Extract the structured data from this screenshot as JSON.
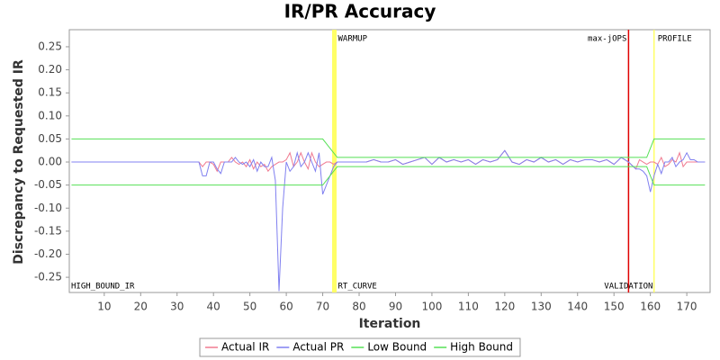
{
  "chart_data": {
    "type": "line",
    "title": "IR/PR Accuracy",
    "xlabel": "Iteration",
    "ylabel": "Discrepancy to Requested IR",
    "xlim": [
      0.4,
      176.4
    ],
    "ylim": [
      -0.283,
      0.287
    ],
    "xticks": [
      10,
      20,
      30,
      40,
      50,
      60,
      70,
      80,
      90,
      100,
      110,
      120,
      130,
      140,
      150,
      160,
      170
    ],
    "yticks": [
      -0.25,
      {
        "value": -0.2,
        "label": "-0.20"
      },
      -0.15,
      {
        "value": -0.1,
        "label": "-0.10"
      },
      -0.05,
      {
        "value": 0,
        "label": "0.00"
      },
      0.05,
      {
        "value": 0.1,
        "label": "0.10"
      },
      0.15,
      {
        "value": 0.2,
        "label": "0.20"
      },
      0.25
    ],
    "x": [
      1,
      35,
      36,
      37,
      38,
      39,
      40,
      41,
      42,
      43,
      44,
      45,
      46,
      47,
      48,
      49,
      50,
      51,
      52,
      53,
      54,
      55,
      56,
      57,
      58,
      59,
      60,
      61,
      62,
      63,
      64,
      65,
      66,
      67,
      68,
      69,
      70,
      71,
      72,
      73,
      74,
      75,
      76,
      78,
      80,
      82,
      84,
      86,
      88,
      90,
      92,
      94,
      96,
      98,
      100,
      102,
      104,
      106,
      108,
      110,
      112,
      114,
      116,
      118,
      120,
      122,
      124,
      126,
      128,
      130,
      132,
      134,
      136,
      138,
      140,
      142,
      144,
      146,
      148,
      150,
      152,
      154,
      156,
      157,
      158,
      159,
      160,
      161,
      162,
      163,
      164,
      165,
      166,
      167,
      168,
      169,
      170,
      171,
      172,
      173,
      174,
      175
    ],
    "series": [
      {
        "name": "Actual IR",
        "color": "#f07a90",
        "values": [
          0,
          0,
          0,
          -0.01,
          0,
          0,
          -0.005,
          -0.02,
          0,
          0,
          0,
          0.01,
          0,
          -0.005,
          0,
          -0.01,
          0.005,
          -0.015,
          0,
          -0.01,
          -0.005,
          -0.02,
          -0.01,
          -0.005,
          0,
          0,
          0.005,
          0.02,
          -0.01,
          0,
          0.02,
          0,
          -0.015,
          0.02,
          0,
          -0.01,
          -0.005,
          0,
          0,
          -0.005,
          0,
          0,
          0,
          0,
          0,
          0,
          0.005,
          0,
          0,
          0.005,
          -0.005,
          0,
          0.005,
          0.01,
          -0.005,
          0.01,
          0,
          0.005,
          0,
          0.005,
          -0.005,
          0.005,
          0,
          0.005,
          0.025,
          0,
          -0.005,
          0.005,
          0,
          0.01,
          0,
          0.005,
          -0.005,
          0.005,
          0,
          0.005,
          0.005,
          0,
          0.005,
          -0.005,
          0.01,
          0,
          -0.015,
          0.005,
          0,
          -0.005,
          0,
          0,
          -0.005,
          0.01,
          -0.01,
          -0.005,
          0.005,
          0,
          0.02,
          -0.01,
          0,
          0,
          0,
          0,
          0,
          0
        ]
      },
      {
        "name": "Actual PR",
        "color": "#8080f0",
        "values": [
          0,
          0,
          0,
          -0.03,
          -0.03,
          0,
          0,
          -0.015,
          -0.025,
          0,
          0,
          0,
          0.01,
          0,
          -0.005,
          0,
          -0.01,
          0.005,
          -0.02,
          0,
          -0.01,
          -0.01,
          0.01,
          -0.04,
          -0.28,
          -0.1,
          0,
          -0.02,
          -0.01,
          0.02,
          -0.01,
          0,
          0.02,
          0,
          -0.02,
          0.02,
          -0.07,
          -0.05,
          -0.03,
          -0.01,
          0,
          0,
          0,
          0,
          0,
          0,
          0.005,
          0,
          0,
          0.005,
          -0.005,
          0,
          0.005,
          0.01,
          -0.005,
          0.01,
          0,
          0.005,
          0,
          0.005,
          -0.005,
          0.005,
          0,
          0.005,
          0.025,
          0,
          -0.005,
          0.005,
          0,
          0.01,
          0,
          0.005,
          -0.005,
          0.005,
          0,
          0.005,
          0.005,
          0,
          0.005,
          -0.005,
          0.01,
          0,
          -0.015,
          -0.015,
          -0.02,
          -0.03,
          -0.065,
          -0.03,
          -0.005,
          -0.025,
          0,
          0,
          0.01,
          -0.01,
          0,
          0.005,
          0.02,
          0.005,
          0.005,
          0,
          0,
          0
        ]
      },
      {
        "name": "Low Bound",
        "color": "#55e055",
        "values": [
          -0.05,
          -0.05,
          -0.05,
          -0.05,
          -0.05,
          -0.05,
          -0.05,
          -0.05,
          -0.05,
          -0.05,
          -0.05,
          -0.05,
          -0.05,
          -0.05,
          -0.05,
          -0.05,
          -0.05,
          -0.05,
          -0.05,
          -0.05,
          -0.05,
          -0.05,
          -0.05,
          -0.05,
          -0.05,
          -0.05,
          -0.05,
          -0.05,
          -0.05,
          -0.05,
          -0.05,
          -0.05,
          -0.05,
          -0.05,
          -0.05,
          -0.05,
          -0.05,
          -0.04,
          -0.03,
          -0.02,
          -0.01,
          -0.01,
          -0.01,
          -0.01,
          -0.01,
          -0.01,
          -0.01,
          -0.01,
          -0.01,
          -0.01,
          -0.01,
          -0.01,
          -0.01,
          -0.01,
          -0.01,
          -0.01,
          -0.01,
          -0.01,
          -0.01,
          -0.01,
          -0.01,
          -0.01,
          -0.01,
          -0.01,
          -0.01,
          -0.01,
          -0.01,
          -0.01,
          -0.01,
          -0.01,
          -0.01,
          -0.01,
          -0.01,
          -0.01,
          -0.01,
          -0.01,
          -0.01,
          -0.01,
          -0.01,
          -0.01,
          -0.01,
          -0.01,
          -0.01,
          -0.01,
          -0.01,
          -0.01,
          -0.03,
          -0.05,
          -0.05,
          -0.05,
          -0.05,
          -0.05,
          -0.05,
          -0.05,
          -0.05,
          -0.05,
          -0.05,
          -0.05,
          -0.05,
          -0.05,
          -0.05,
          -0.05
        ]
      },
      {
        "name": "High Bound",
        "color": "#55e055",
        "values": [
          0.05,
          0.05,
          0.05,
          0.05,
          0.05,
          0.05,
          0.05,
          0.05,
          0.05,
          0.05,
          0.05,
          0.05,
          0.05,
          0.05,
          0.05,
          0.05,
          0.05,
          0.05,
          0.05,
          0.05,
          0.05,
          0.05,
          0.05,
          0.05,
          0.05,
          0.05,
          0.05,
          0.05,
          0.05,
          0.05,
          0.05,
          0.05,
          0.05,
          0.05,
          0.05,
          0.05,
          0.05,
          0.04,
          0.03,
          0.02,
          0.01,
          0.01,
          0.01,
          0.01,
          0.01,
          0.01,
          0.01,
          0.01,
          0.01,
          0.01,
          0.01,
          0.01,
          0.01,
          0.01,
          0.01,
          0.01,
          0.01,
          0.01,
          0.01,
          0.01,
          0.01,
          0.01,
          0.01,
          0.01,
          0.01,
          0.01,
          0.01,
          0.01,
          0.01,
          0.01,
          0.01,
          0.01,
          0.01,
          0.01,
          0.01,
          0.01,
          0.01,
          0.01,
          0.01,
          0.01,
          0.01,
          0.01,
          0.01,
          0.01,
          0.01,
          0.01,
          0.03,
          0.05,
          0.05,
          0.05,
          0.05,
          0.05,
          0.05,
          0.05,
          0.05,
          0.05,
          0.05,
          0.05,
          0.05,
          0.05,
          0.05,
          0.05
        ]
      }
    ],
    "corner_label": "HIGH_BOUND_IR",
    "markers": [
      {
        "x": 73.2,
        "color": "#ffff66",
        "top_label": "WARMUP",
        "bottom_label": "RT_CURVE",
        "top_side": "right",
        "bottom_side": "right"
      },
      {
        "x": 154,
        "color": "#e00000",
        "top_label": "max-jOPS",
        "bottom_label": "VALIDATION",
        "top_side": "left",
        "bottom_side": "center"
      },
      {
        "x": 161,
        "color": "#ffff66",
        "top_label": "PROFILE",
        "top_side": "right"
      }
    ]
  }
}
